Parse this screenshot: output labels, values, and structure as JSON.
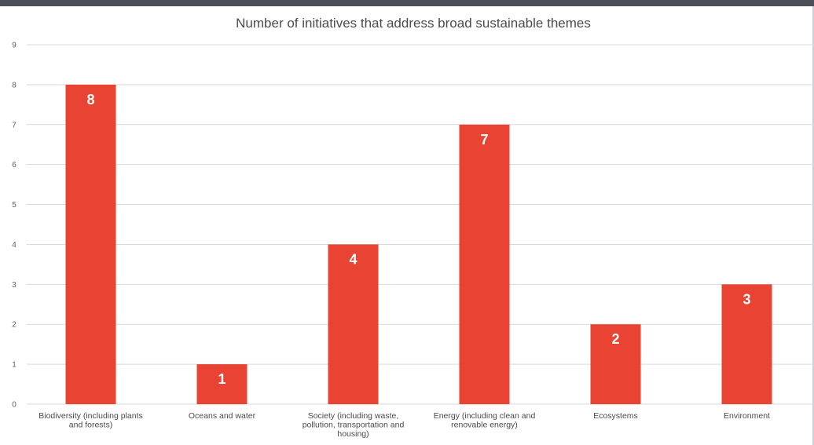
{
  "chart_data": {
    "type": "bar",
    "title": "Number of initiatives that address broad sustainable themes",
    "xlabel": "",
    "ylabel": "",
    "ylim": [
      0,
      9
    ],
    "yticks": [
      "0",
      "1",
      "2",
      "3",
      "4",
      "5",
      "6",
      "7",
      "8",
      "9"
    ],
    "categories": [
      [
        "Biodiversity (including plants",
        "and forests)"
      ],
      [
        "Oceans and water"
      ],
      [
        "Society (including waste,",
        "pollution, transportation and",
        "housing)"
      ],
      [
        "Energy (including clean and",
        "renovable energy)"
      ],
      [
        "Ecosystems"
      ],
      [
        "Environment"
      ]
    ],
    "values": [
      8,
      1,
      4,
      7,
      2,
      3
    ],
    "data_labels": [
      "8",
      "1",
      "4",
      "7",
      "2",
      "3"
    ],
    "grid": true,
    "legend": "none",
    "colors": {
      "bar": "#e84333",
      "gridline": "#d9d9d9",
      "top_bar": "#4a4f5a"
    }
  }
}
